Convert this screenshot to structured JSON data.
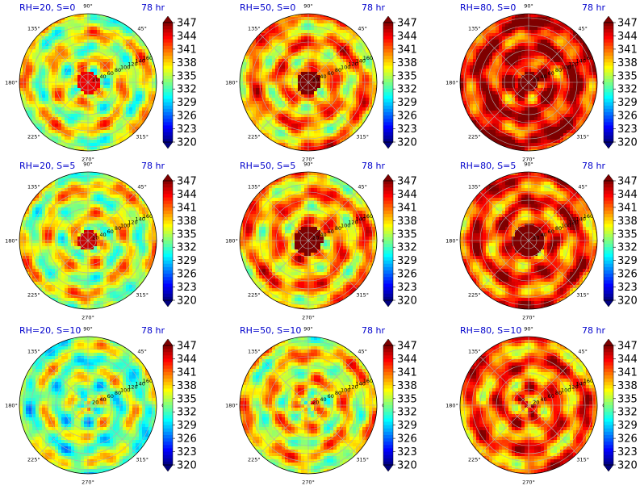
{
  "figure": {
    "colorbar_colors": [
      "#00007f",
      "#0000ff",
      "#007fff",
      "#00ffff",
      "#7fff7f",
      "#ffff00",
      "#ff7f00",
      "#ff0000",
      "#7f0000"
    ]
  },
  "chart_data": [
    {
      "type": "heatmap",
      "projection": "polar",
      "title_left": "RH=20, S=0",
      "title_right": "78 hr",
      "angle_ticks": [
        "90°",
        "45°",
        "0°",
        "315°",
        "270°",
        "225°",
        "180°",
        "135°"
      ],
      "radial_ticks": [
        "20",
        "40",
        "60",
        "80",
        "100",
        "120",
        "140",
        "160"
      ],
      "rmax": 170,
      "colorbar": {
        "ticks": [
          "347",
          "344",
          "341",
          "338",
          "335",
          "332",
          "329",
          "326",
          "323",
          "320"
        ],
        "vmin": 320,
        "vmax": 347,
        "extend": "both"
      },
      "mean_value": 336,
      "core_value": 344,
      "core_radius": 28
    },
    {
      "type": "heatmap",
      "projection": "polar",
      "title_left": "RH=50, S=0",
      "title_right": "78 hr",
      "angle_ticks": [
        "90°",
        "45°",
        "0°",
        "315°",
        "270°",
        "225°",
        "180°",
        "135°"
      ],
      "radial_ticks": [
        "20",
        "40",
        "60",
        "80",
        "100",
        "120",
        "140",
        "160"
      ],
      "rmax": 170,
      "colorbar": {
        "ticks": [
          "347",
          "344",
          "341",
          "338",
          "335",
          "332",
          "329",
          "326",
          "323",
          "320"
        ],
        "vmin": 320,
        "vmax": 347,
        "extend": "both"
      },
      "mean_value": 339,
      "core_value": 347,
      "core_radius": 30
    },
    {
      "type": "heatmap",
      "projection": "polar",
      "title_left": "RH=80, S=0",
      "title_right": "78 hr",
      "angle_ticks": [
        "90°",
        "45°",
        "0°",
        "315°",
        "270°",
        "225°",
        "180°",
        "135°"
      ],
      "radial_ticks": [
        "20",
        "40",
        "60",
        "80",
        "100",
        "120",
        "140",
        "160"
      ],
      "rmax": 170,
      "colorbar": {
        "ticks": [
          "347",
          "344",
          "341",
          "338",
          "335",
          "332",
          "329",
          "326",
          "323",
          "320"
        ],
        "vmin": 320,
        "vmax": 347,
        "extend": "both"
      },
      "mean_value": 344,
      "core_value": 348,
      "core_radius": 25
    },
    {
      "type": "heatmap",
      "projection": "polar",
      "title_left": "RH=20, S=5",
      "title_right": "78 hr",
      "angle_ticks": [
        "90°",
        "45°",
        "0°",
        "315°",
        "270°",
        "225°",
        "180°",
        "135°"
      ],
      "radial_ticks": [
        "20",
        "40",
        "60",
        "80",
        "100",
        "120",
        "140",
        "160"
      ],
      "rmax": 170,
      "colorbar": {
        "ticks": [
          "347",
          "344",
          "341",
          "338",
          "335",
          "332",
          "329",
          "326",
          "323",
          "320"
        ],
        "vmin": 320,
        "vmax": 347,
        "extend": "both"
      },
      "mean_value": 336,
      "core_value": 345,
      "core_radius": 25
    },
    {
      "type": "heatmap",
      "projection": "polar",
      "title_left": "RH=50, S=5",
      "title_right": "78 hr",
      "angle_ticks": [
        "90°",
        "45°",
        "0°",
        "315°",
        "270°",
        "225°",
        "180°",
        "135°"
      ],
      "radial_ticks": [
        "20",
        "40",
        "60",
        "80",
        "100",
        "120",
        "140",
        "160"
      ],
      "rmax": 170,
      "colorbar": {
        "ticks": [
          "347",
          "344",
          "341",
          "338",
          "335",
          "332",
          "329",
          "326",
          "323",
          "320"
        ],
        "vmin": 320,
        "vmax": 347,
        "extend": "both"
      },
      "mean_value": 339,
      "core_value": 347,
      "core_radius": 35
    },
    {
      "type": "heatmap",
      "projection": "polar",
      "title_left": "RH=80, S=5",
      "title_right": "78 hr",
      "angle_ticks": [
        "90°",
        "45°",
        "0°",
        "315°",
        "270°",
        "225°",
        "180°",
        "135°"
      ],
      "radial_ticks": [
        "20",
        "40",
        "60",
        "80",
        "100",
        "120",
        "140",
        "160"
      ],
      "rmax": 170,
      "colorbar": {
        "ticks": [
          "347",
          "344",
          "341",
          "338",
          "335",
          "332",
          "329",
          "326",
          "323",
          "320"
        ],
        "vmin": 320,
        "vmax": 347,
        "extend": "both"
      },
      "mean_value": 342,
      "core_value": 348,
      "core_radius": 40
    },
    {
      "type": "heatmap",
      "projection": "polar",
      "title_left": "RH=20, S=10",
      "title_right": "78 hr",
      "angle_ticks": [
        "90°",
        "45°",
        "0°",
        "315°",
        "270°",
        "225°",
        "180°",
        "135°"
      ],
      "radial_ticks": [
        "20",
        "40",
        "60",
        "80",
        "100",
        "120",
        "140",
        "160"
      ],
      "rmax": 170,
      "colorbar": {
        "ticks": [
          "347",
          "344",
          "341",
          "338",
          "335",
          "332",
          "329",
          "326",
          "323",
          "320"
        ],
        "vmin": 320,
        "vmax": 347,
        "extend": "both"
      },
      "mean_value": 334,
      "core_value": 336,
      "core_radius": 0
    },
    {
      "type": "heatmap",
      "projection": "polar",
      "title_left": "RH=50, S=10",
      "title_right": "78 hr",
      "angle_ticks": [
        "90°",
        "45°",
        "0°",
        "315°",
        "270°",
        "225°",
        "180°",
        "135°"
      ],
      "radial_ticks": [
        "20",
        "40",
        "60",
        "80",
        "100",
        "120",
        "140",
        "160"
      ],
      "rmax": 170,
      "colorbar": {
        "ticks": [
          "347",
          "344",
          "341",
          "338",
          "335",
          "332",
          "329",
          "326",
          "323",
          "320"
        ],
        "vmin": 320,
        "vmax": 347,
        "extend": "both"
      },
      "mean_value": 337,
      "core_value": 340,
      "core_radius": 0
    },
    {
      "type": "heatmap",
      "projection": "polar",
      "title_left": "RH=80, S=10",
      "title_right": "78 hr",
      "angle_ticks": [
        "90°",
        "45°",
        "0°",
        "315°",
        "270°",
        "225°",
        "180°",
        "135°"
      ],
      "radial_ticks": [
        "20",
        "40",
        "60",
        "80",
        "100",
        "120",
        "140",
        "160"
      ],
      "rmax": 170,
      "colorbar": {
        "ticks": [
          "347",
          "344",
          "341",
          "338",
          "335",
          "332",
          "329",
          "326",
          "323",
          "320"
        ],
        "vmin": 320,
        "vmax": 347,
        "extend": "both"
      },
      "mean_value": 341,
      "core_value": 345,
      "core_radius": 0
    }
  ]
}
